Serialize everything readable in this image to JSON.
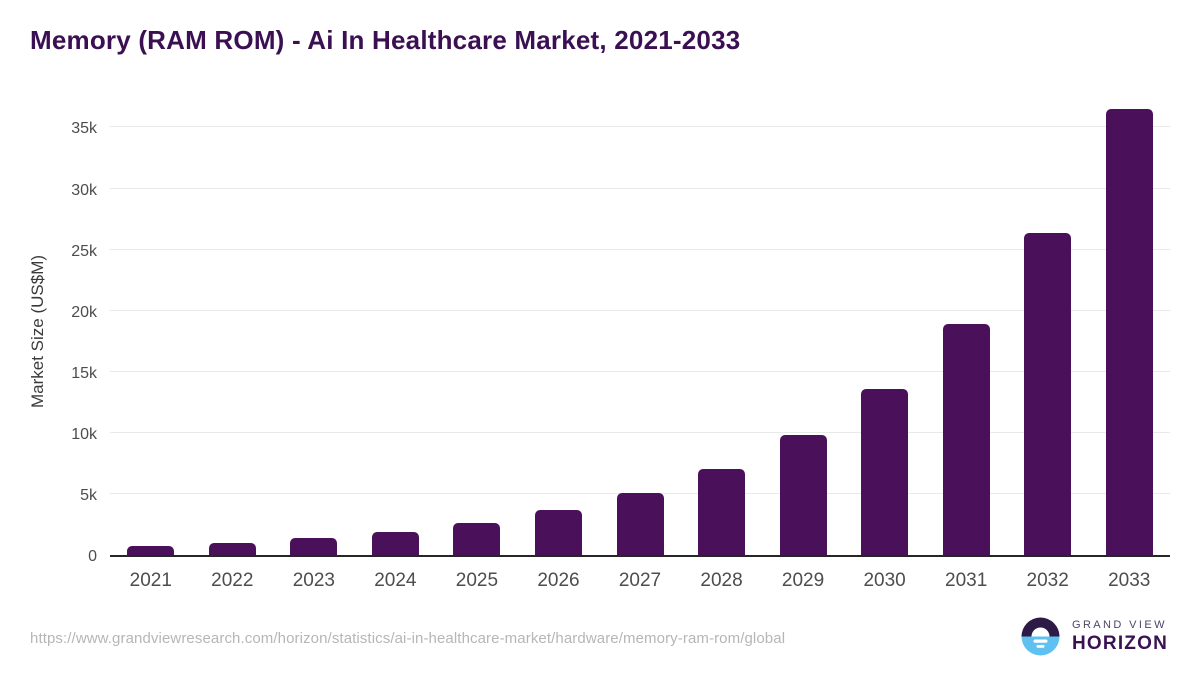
{
  "header": {
    "title": "Memory (RAM ROM) - Ai In Healthcare Market, 2021-2033"
  },
  "footer": {
    "source_url": "https://www.grandviewresearch.com/horizon/statistics/ai-in-healthcare-market/hardware/memory-ram-rom/global",
    "logo": {
      "line1": "GRAND VIEW",
      "line2": "HORIZON"
    }
  },
  "colors": {
    "bar": "#4a1059",
    "title": "#3b1053",
    "gridline": "#e9e9e9",
    "axis_line": "#262626",
    "tick_label": "#4d4d4d",
    "y_axis_title": "#3a3a3a",
    "source_url": "#b6b6b6",
    "logo_dark": "#2e1a47",
    "logo_blue": "#5ec1ef"
  },
  "chart_data": {
    "type": "bar",
    "title": "Memory (RAM ROM) - Ai In Healthcare Market, 2021-2033",
    "xlabel": "",
    "ylabel": "Market Size (US$M)",
    "categories": [
      "2021",
      "2022",
      "2023",
      "2024",
      "2025",
      "2026",
      "2027",
      "2028",
      "2029",
      "2030",
      "2031",
      "2032",
      "2033"
    ],
    "values": [
      700,
      1000,
      1400,
      1900,
      2650,
      3700,
      5100,
      7050,
      9850,
      13600,
      18900,
      26400,
      36500
    ],
    "y_ticks": [
      {
        "label": "0",
        "value": 0
      },
      {
        "label": "5k",
        "value": 5000
      },
      {
        "label": "10k",
        "value": 10000
      },
      {
        "label": "15k",
        "value": 15000
      },
      {
        "label": "20k",
        "value": 20000
      },
      {
        "label": "25k",
        "value": 25000
      },
      {
        "label": "30k",
        "value": 30000
      },
      {
        "label": "35k",
        "value": 35000
      }
    ],
    "ylim": [
      0,
      37000
    ],
    "grid": "horizontal",
    "legend": "none"
  }
}
